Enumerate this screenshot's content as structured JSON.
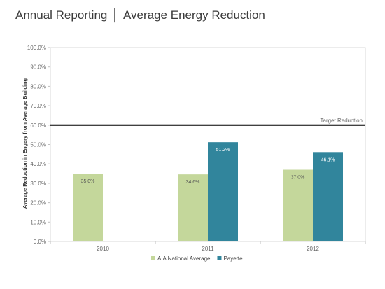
{
  "header": {
    "title_left": "Annual Reporting",
    "separator": "│",
    "title_right": "Average Energy Reduction"
  },
  "chart_data": {
    "type": "bar",
    "title": "",
    "xlabel": "",
    "ylabel": "Average Reduction in Engery from Average Building",
    "categories": [
      "2010",
      "2011",
      "2012"
    ],
    "ylim": [
      0,
      100
    ],
    "y_ticks": [
      "0.0%",
      "10.0%",
      "20.0%",
      "30.0%",
      "40.0%",
      "50.0%",
      "60.0%",
      "70.0%",
      "80.0%",
      "90.0%",
      "100.0%"
    ],
    "series": [
      {
        "name": "AIA National Average",
        "color": "#c4d79b",
        "values": [
          35.0,
          34.6,
          37.0
        ],
        "labels": [
          "35.0%",
          "34.6%",
          "37.0%"
        ]
      },
      {
        "name": "Payette",
        "color": "#31859c",
        "values": [
          null,
          51.2,
          46.1
        ],
        "labels": [
          "",
          "51.2%",
          "46.1%"
        ]
      }
    ],
    "reference_line": {
      "label": "Target Reduction",
      "value": 60,
      "color": "#000000"
    },
    "grid": false,
    "legend": "bottom"
  }
}
